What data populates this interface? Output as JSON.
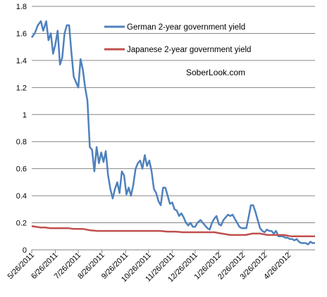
{
  "chart_data": {
    "type": "line",
    "title": "",
    "xlabel": "",
    "ylabel": "",
    "ylim": [
      0,
      1.8
    ],
    "yticks": [
      "0",
      "0.2",
      "0.4",
      "0.6",
      "0.8",
      "1",
      "1.2",
      "1.4",
      "1.6",
      "1.8"
    ],
    "xticks": [
      "5/26/2011",
      "6/26/2011",
      "7/26/2011",
      "8/26/2011",
      "9/26/2011",
      "10/26/2011",
      "11/26/2011",
      "12/26/2011",
      "1/26/2012",
      "2/26/2012",
      "3/26/2012",
      "4/26/2012"
    ],
    "x_start": "5/26/2011",
    "x_end": "5/31/2012",
    "grid": "horizontal",
    "legend_position": "top-right",
    "annotation": "SoberLook.com",
    "series": [
      {
        "name": "German 2-year government yield",
        "color": "#4f81bd",
        "points": [
          [
            "5/26/2011",
            1.57
          ],
          [
            "5/30/2011",
            1.6
          ],
          [
            "6/3/2011",
            1.66
          ],
          [
            "6/7/2011",
            1.69
          ],
          [
            "6/10/2011",
            1.62
          ],
          [
            "6/14/2011",
            1.69
          ],
          [
            "6/17/2011",
            1.55
          ],
          [
            "6/20/2011",
            1.6
          ],
          [
            "6/23/2011",
            1.45
          ],
          [
            "6/26/2011",
            1.52
          ],
          [
            "6/29/2011",
            1.62
          ],
          [
            "7/2/2011",
            1.37
          ],
          [
            "7/5/2011",
            1.42
          ],
          [
            "7/8/2011",
            1.6
          ],
          [
            "7/11/2011",
            1.66
          ],
          [
            "7/14/2011",
            1.66
          ],
          [
            "7/17/2011",
            1.46
          ],
          [
            "7/20/2011",
            1.28
          ],
          [
            "7/23/2011",
            1.24
          ],
          [
            "7/26/2011",
            1.2
          ],
          [
            "7/29/2011",
            1.41
          ],
          [
            "8/1/2011",
            1.33
          ],
          [
            "8/4/2011",
            1.2
          ],
          [
            "8/7/2011",
            1.1
          ],
          [
            "8/10/2011",
            0.76
          ],
          [
            "8/13/2011",
            0.74
          ],
          [
            "8/16/2011",
            0.58
          ],
          [
            "8/19/2011",
            0.76
          ],
          [
            "8/22/2011",
            0.64
          ],
          [
            "8/25/2011",
            0.72
          ],
          [
            "8/28/2011",
            0.65
          ],
          [
            "8/31/2011",
            0.73
          ],
          [
            "9/3/2011",
            0.55
          ],
          [
            "9/6/2011",
            0.45
          ],
          [
            "9/9/2011",
            0.38
          ],
          [
            "9/12/2011",
            0.45
          ],
          [
            "9/15/2011",
            0.5
          ],
          [
            "9/18/2011",
            0.42
          ],
          [
            "9/21/2011",
            0.58
          ],
          [
            "9/24/2011",
            0.55
          ],
          [
            "9/27/2011",
            0.41
          ],
          [
            "9/30/2011",
            0.46
          ],
          [
            "10/3/2011",
            0.4
          ],
          [
            "10/6/2011",
            0.48
          ],
          [
            "10/9/2011",
            0.6
          ],
          [
            "10/12/2011",
            0.64
          ],
          [
            "10/15/2011",
            0.66
          ],
          [
            "10/18/2011",
            0.6
          ],
          [
            "10/21/2011",
            0.7
          ],
          [
            "10/24/2011",
            0.62
          ],
          [
            "10/27/2011",
            0.66
          ],
          [
            "10/30/2011",
            0.58
          ],
          [
            "11/2/2011",
            0.45
          ],
          [
            "11/5/2011",
            0.42
          ],
          [
            "11/8/2011",
            0.36
          ],
          [
            "11/11/2011",
            0.33
          ],
          [
            "11/14/2011",
            0.46
          ],
          [
            "11/17/2011",
            0.46
          ],
          [
            "11/20/2011",
            0.4
          ],
          [
            "11/23/2011",
            0.34
          ],
          [
            "11/26/2011",
            0.35
          ],
          [
            "11/29/2011",
            0.3
          ],
          [
            "12/2/2011",
            0.29
          ],
          [
            "12/5/2011",
            0.25
          ],
          [
            "12/8/2011",
            0.27
          ],
          [
            "12/11/2011",
            0.24
          ],
          [
            "12/14/2011",
            0.2
          ],
          [
            "12/17/2011",
            0.18
          ],
          [
            "12/20/2011",
            0.2
          ],
          [
            "12/23/2011",
            0.17
          ],
          [
            "12/26/2011",
            0.17
          ],
          [
            "12/29/2011",
            0.2
          ],
          [
            "1/2/2012",
            0.22
          ],
          [
            "1/5/2012",
            0.2
          ],
          [
            "1/8/2012",
            0.18
          ],
          [
            "1/11/2012",
            0.16
          ],
          [
            "1/14/2012",
            0.15
          ],
          [
            "1/17/2012",
            0.2
          ],
          [
            "1/20/2012",
            0.23
          ],
          [
            "1/23/2012",
            0.25
          ],
          [
            "1/26/2012",
            0.19
          ],
          [
            "1/29/2012",
            0.18
          ],
          [
            "2/1/2012",
            0.22
          ],
          [
            "2/4/2012",
            0.24
          ],
          [
            "2/7/2012",
            0.26
          ],
          [
            "2/10/2012",
            0.25
          ],
          [
            "2/13/2012",
            0.26
          ],
          [
            "2/16/2012",
            0.23
          ],
          [
            "2/19/2012",
            0.2
          ],
          [
            "2/22/2012",
            0.17
          ],
          [
            "2/25/2012",
            0.16
          ],
          [
            "2/28/2012",
            0.16
          ],
          [
            "3/2/2012",
            0.16
          ],
          [
            "3/5/2012",
            0.24
          ],
          [
            "3/8/2012",
            0.33
          ],
          [
            "3/11/2012",
            0.33
          ],
          [
            "3/14/2012",
            0.28
          ],
          [
            "3/17/2012",
            0.22
          ],
          [
            "3/20/2012",
            0.16
          ],
          [
            "3/23/2012",
            0.14
          ],
          [
            "3/26/2012",
            0.13
          ],
          [
            "3/29/2012",
            0.15
          ],
          [
            "4/1/2012",
            0.14
          ],
          [
            "4/4/2012",
            0.14
          ],
          [
            "4/7/2012",
            0.12
          ],
          [
            "4/10/2012",
            0.14
          ],
          [
            "4/13/2012",
            0.1
          ],
          [
            "4/16/2012",
            0.1
          ],
          [
            "4/19/2012",
            0.1
          ],
          [
            "4/22/2012",
            0.09
          ],
          [
            "4/25/2012",
            0.09
          ],
          [
            "4/28/2012",
            0.08
          ],
          [
            "5/1/2012",
            0.08
          ],
          [
            "5/4/2012",
            0.07
          ],
          [
            "5/7/2012",
            0.08
          ],
          [
            "5/10/2012",
            0.06
          ],
          [
            "5/13/2012",
            0.05
          ],
          [
            "5/16/2012",
            0.05
          ],
          [
            "5/19/2012",
            0.05
          ],
          [
            "5/22/2012",
            0.04
          ],
          [
            "5/25/2012",
            0.06
          ],
          [
            "5/28/2012",
            0.05
          ],
          [
            "5/31/2012",
            0.05
          ]
        ]
      },
      {
        "name": "Japanese 2-year government yield",
        "color": "#c0504d",
        "points": [
          [
            "5/26/2011",
            0.175
          ],
          [
            "6/1/2011",
            0.17
          ],
          [
            "6/7/2011",
            0.165
          ],
          [
            "6/13/2011",
            0.165
          ],
          [
            "6/19/2011",
            0.16
          ],
          [
            "6/25/2011",
            0.16
          ],
          [
            "7/1/2011",
            0.16
          ],
          [
            "7/7/2011",
            0.16
          ],
          [
            "7/13/2011",
            0.16
          ],
          [
            "7/19/2011",
            0.155
          ],
          [
            "7/25/2011",
            0.155
          ],
          [
            "8/1/2011",
            0.155
          ],
          [
            "8/10/2011",
            0.145
          ],
          [
            "8/20/2011",
            0.14
          ],
          [
            "8/30/2011",
            0.14
          ],
          [
            "9/10/2011",
            0.14
          ],
          [
            "9/20/2011",
            0.14
          ],
          [
            "9/30/2011",
            0.14
          ],
          [
            "10/10/2011",
            0.14
          ],
          [
            "10/20/2011",
            0.14
          ],
          [
            "10/30/2011",
            0.14
          ],
          [
            "11/10/2011",
            0.14
          ],
          [
            "11/20/2011",
            0.135
          ],
          [
            "11/30/2011",
            0.135
          ],
          [
            "12/10/2011",
            0.13
          ],
          [
            "12/20/2011",
            0.13
          ],
          [
            "12/30/2011",
            0.13
          ],
          [
            "1/10/2012",
            0.13
          ],
          [
            "1/20/2012",
            0.13
          ],
          [
            "1/30/2012",
            0.12
          ],
          [
            "2/10/2012",
            0.11
          ],
          [
            "2/20/2012",
            0.11
          ],
          [
            "3/1/2012",
            0.11
          ],
          [
            "3/10/2012",
            0.12
          ],
          [
            "3/20/2012",
            0.12
          ],
          [
            "3/30/2012",
            0.11
          ],
          [
            "4/10/2012",
            0.11
          ],
          [
            "4/20/2012",
            0.11
          ],
          [
            "4/30/2012",
            0.1
          ],
          [
            "5/10/2012",
            0.1
          ],
          [
            "5/20/2012",
            0.1
          ],
          [
            "5/31/2012",
            0.1
          ]
        ]
      }
    ]
  }
}
